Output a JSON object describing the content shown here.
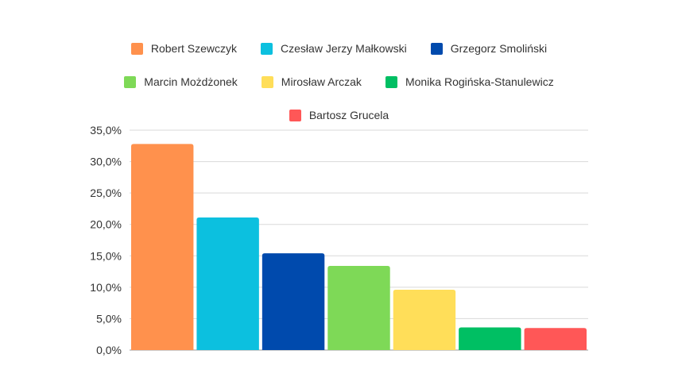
{
  "chart_data": {
    "type": "bar",
    "categories": [
      "Robert Szewczyk",
      "Czesław Jerzy Małkowski",
      "Grzegorz Smoliński",
      "Marcin Możdżonek",
      "Mirosław Arczak",
      "Monika Rogińska-Stanulewicz",
      "Bartosz Grucela"
    ],
    "values": [
      32.8,
      21.1,
      15.4,
      13.4,
      9.6,
      3.6,
      3.5
    ],
    "colors": [
      "#FF914D",
      "#0CC0DF",
      "#004AAD",
      "#7ED957",
      "#FFDE59",
      "#00BF63",
      "#FF5757"
    ],
    "ylim": [
      0,
      35
    ],
    "yticks": [
      "0,0%",
      "5,0%",
      "10,0%",
      "15,0%",
      "20,0%",
      "25,0%",
      "30,0%",
      "35,0%"
    ],
    "grid": true,
    "legend_position": "top",
    "title": "",
    "xlabel": "",
    "ylabel": ""
  }
}
